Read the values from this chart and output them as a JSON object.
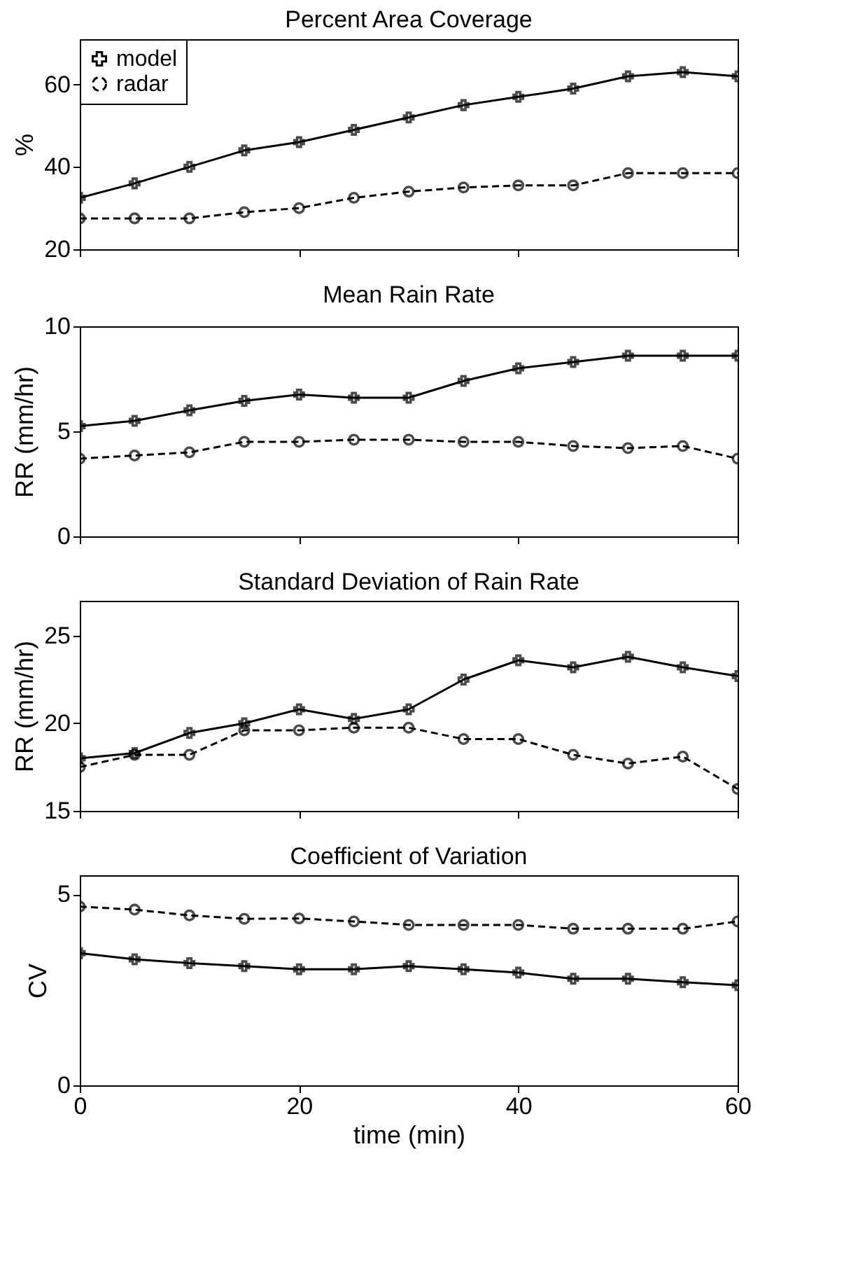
{
  "chart_data": [
    {
      "type": "line",
      "title": "Percent Area Coverage",
      "ylabel": "%",
      "xlim": [
        0,
        60
      ],
      "xticks": [
        0,
        20,
        40,
        60
      ],
      "ylim": [
        20,
        71
      ],
      "yticks": [
        20,
        40,
        60
      ],
      "grid": false,
      "legend": "top left",
      "tick_labels": "y",
      "x": [
        0,
        5,
        10,
        15,
        20,
        25,
        30,
        35,
        40,
        45,
        50,
        55,
        60
      ],
      "series": [
        {
          "name": "model",
          "color": "#000000",
          "marker": "cross",
          "line_style": "solid",
          "values": [
            32.5,
            36,
            40,
            44,
            46,
            49,
            52,
            55,
            57,
            59,
            62,
            63,
            62
          ]
        },
        {
          "name": "radar",
          "color": "#000000",
          "marker": "circle",
          "line_style": "dashed",
          "values": [
            27.5,
            27.5,
            27.5,
            29,
            30,
            32.5,
            34,
            35,
            35.5,
            35.5,
            38.5,
            38.5,
            38.5
          ]
        }
      ]
    },
    {
      "type": "line",
      "title": "Mean Rain Rate",
      "ylabel": "RR (mm/hr)",
      "xlim": [
        0,
        60
      ],
      "xticks": [
        0,
        20,
        40,
        60
      ],
      "ylim": [
        0,
        10
      ],
      "yticks": [
        0,
        5,
        10
      ],
      "grid": false,
      "tick_labels": "y",
      "x": [
        0,
        5,
        10,
        15,
        20,
        25,
        30,
        35,
        40,
        45,
        50,
        55,
        60
      ],
      "series": [
        {
          "color": "#000000",
          "marker": "cross",
          "line_style": "solid",
          "values": [
            5.25,
            5.5,
            6.0,
            6.45,
            6.75,
            6.6,
            6.6,
            7.4,
            8.0,
            8.3,
            8.6,
            8.6,
            8.6
          ]
        },
        {
          "color": "#000000",
          "marker": "circle",
          "line_style": "dashed",
          "values": [
            3.7,
            3.85,
            4.0,
            4.5,
            4.5,
            4.6,
            4.6,
            4.5,
            4.5,
            4.3,
            4.2,
            4.3,
            3.7
          ]
        }
      ]
    },
    {
      "type": "line",
      "title": "Standard Deviation of Rain Rate",
      "ylabel": "RR (mm/hr)",
      "xlim": [
        0,
        60
      ],
      "xticks": [
        0,
        20,
        40,
        60
      ],
      "ylim": [
        15,
        27
      ],
      "yticks": [
        15,
        20,
        25
      ],
      "grid": false,
      "tick_labels": "y",
      "x": [
        0,
        5,
        10,
        15,
        20,
        25,
        30,
        35,
        40,
        45,
        50,
        55,
        60
      ],
      "series": [
        {
          "color": "#000000",
          "marker": "cross",
          "line_style": "solid",
          "values": [
            18.0,
            18.3,
            19.45,
            20.0,
            20.8,
            20.25,
            20.8,
            22.5,
            23.6,
            23.2,
            23.8,
            23.2,
            22.7
          ]
        },
        {
          "color": "#000000",
          "marker": "circle",
          "line_style": "dashed",
          "values": [
            17.5,
            18.2,
            18.2,
            19.6,
            19.6,
            19.75,
            19.75,
            19.1,
            19.1,
            18.2,
            17.7,
            18.1,
            16.25
          ]
        }
      ]
    },
    {
      "type": "line",
      "title": "Coefficient of Variation",
      "xlabel": "time (min)",
      "ylabel": "CV",
      "xlim": [
        0,
        60
      ],
      "xticks": [
        0,
        20,
        40,
        60
      ],
      "ylim": [
        0,
        5.5
      ],
      "yticks": [
        0,
        5
      ],
      "grid": false,
      "x": [
        0,
        5,
        10,
        15,
        20,
        25,
        30,
        35,
        40,
        45,
        50,
        55,
        60
      ],
      "series": [
        {
          "color": "#000000",
          "marker": "cross",
          "line_style": "solid",
          "values": [
            3.46,
            3.3,
            3.2,
            3.12,
            3.04,
            3.04,
            3.12,
            3.04,
            2.95,
            2.79,
            2.79,
            2.7,
            2.62
          ]
        },
        {
          "color": "#000000",
          "marker": "circle",
          "line_style": "dashed",
          "values": [
            4.68,
            4.6,
            4.45,
            4.36,
            4.37,
            4.29,
            4.2,
            4.2,
            4.2,
            4.1,
            4.1,
            4.1,
            4.29
          ]
        }
      ]
    }
  ]
}
